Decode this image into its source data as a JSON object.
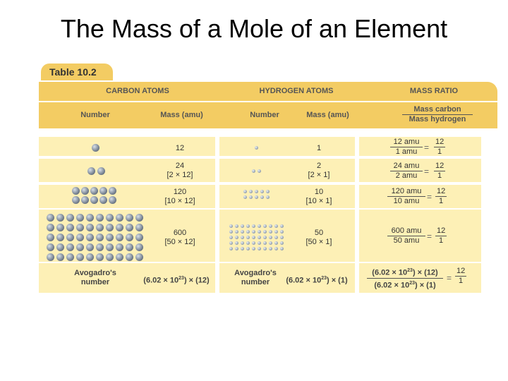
{
  "slide_title": "The Mass of a Mole of an Element",
  "table": {
    "label": "Table 10.2",
    "group_headers": [
      "CARBON ATOMS",
      "HYDROGEN ATOMS",
      "MASS RATIO"
    ],
    "col_headers": {
      "c_number": "Number",
      "c_mass": "Mass (amu)",
      "h_number": "Number",
      "h_mass": "Mass (amu)",
      "ratio_num": "Mass carbon",
      "ratio_den": "Mass hydrogen"
    },
    "rows": [
      {
        "carbon_count": 1,
        "carbon_mass": "12",
        "carbon_expr": "",
        "hydrogen_count": 1,
        "hydrogen_mass": "1",
        "hydrogen_expr": "",
        "ratio_num": "12 amu",
        "ratio_den": "1 amu",
        "eq": "=",
        "result_num": "12",
        "result_den": "1"
      },
      {
        "carbon_count": 2,
        "carbon_mass": "24",
        "carbon_expr": "[2 × 12]",
        "hydrogen_count": 2,
        "hydrogen_mass": "2",
        "hydrogen_expr": "[2 × 1]",
        "ratio_num": "24 amu",
        "ratio_den": "2 amu",
        "eq": "=",
        "result_num": "12",
        "result_den": "1"
      },
      {
        "carbon_count": 10,
        "carbon_mass": "120",
        "carbon_expr": "[10 × 12]",
        "hydrogen_count": 10,
        "hydrogen_mass": "10",
        "hydrogen_expr": "[10 × 1]",
        "ratio_num": "120 amu",
        "ratio_den": "10 amu",
        "eq": "=",
        "result_num": "12",
        "result_den": "1"
      },
      {
        "carbon_count": 50,
        "carbon_mass": "600",
        "carbon_expr": "[50 × 12]",
        "hydrogen_count": 50,
        "hydrogen_mass": "50",
        "hydrogen_expr": "[50 × 1]",
        "ratio_num": "600 amu",
        "ratio_den": "50 amu",
        "eq": "=",
        "result_num": "12",
        "result_den": "1"
      }
    ],
    "avogadro_row": {
      "carbon_label": "Avogadro's number",
      "carbon_mass_coef": "(6.02 × 10",
      "carbon_mass_exp": "23",
      "carbon_mass_tail": ") × (12)",
      "hydrogen_label": "Avogadro's number",
      "hydrogen_mass_coef": "(6.02 × 10",
      "hydrogen_mass_exp": "23",
      "hydrogen_mass_tail": ") × (1)",
      "ratio_num_coef": "(6.02 × 10",
      "ratio_num_exp": "23",
      "ratio_num_tail": ") × (12)",
      "ratio_den_coef": "(6.02 × 10",
      "ratio_den_exp": "23",
      "ratio_den_tail": ") × (1)",
      "eq": "=",
      "result_num": "12",
      "result_den": "1"
    }
  },
  "colors": {
    "header_fill": "#f3cc63",
    "cell_fill": "#fdf0b6"
  },
  "icons": {
    "carbon_atom": "carbon-atom-icon",
    "hydrogen_atom": "hydrogen-atom-icon"
  }
}
